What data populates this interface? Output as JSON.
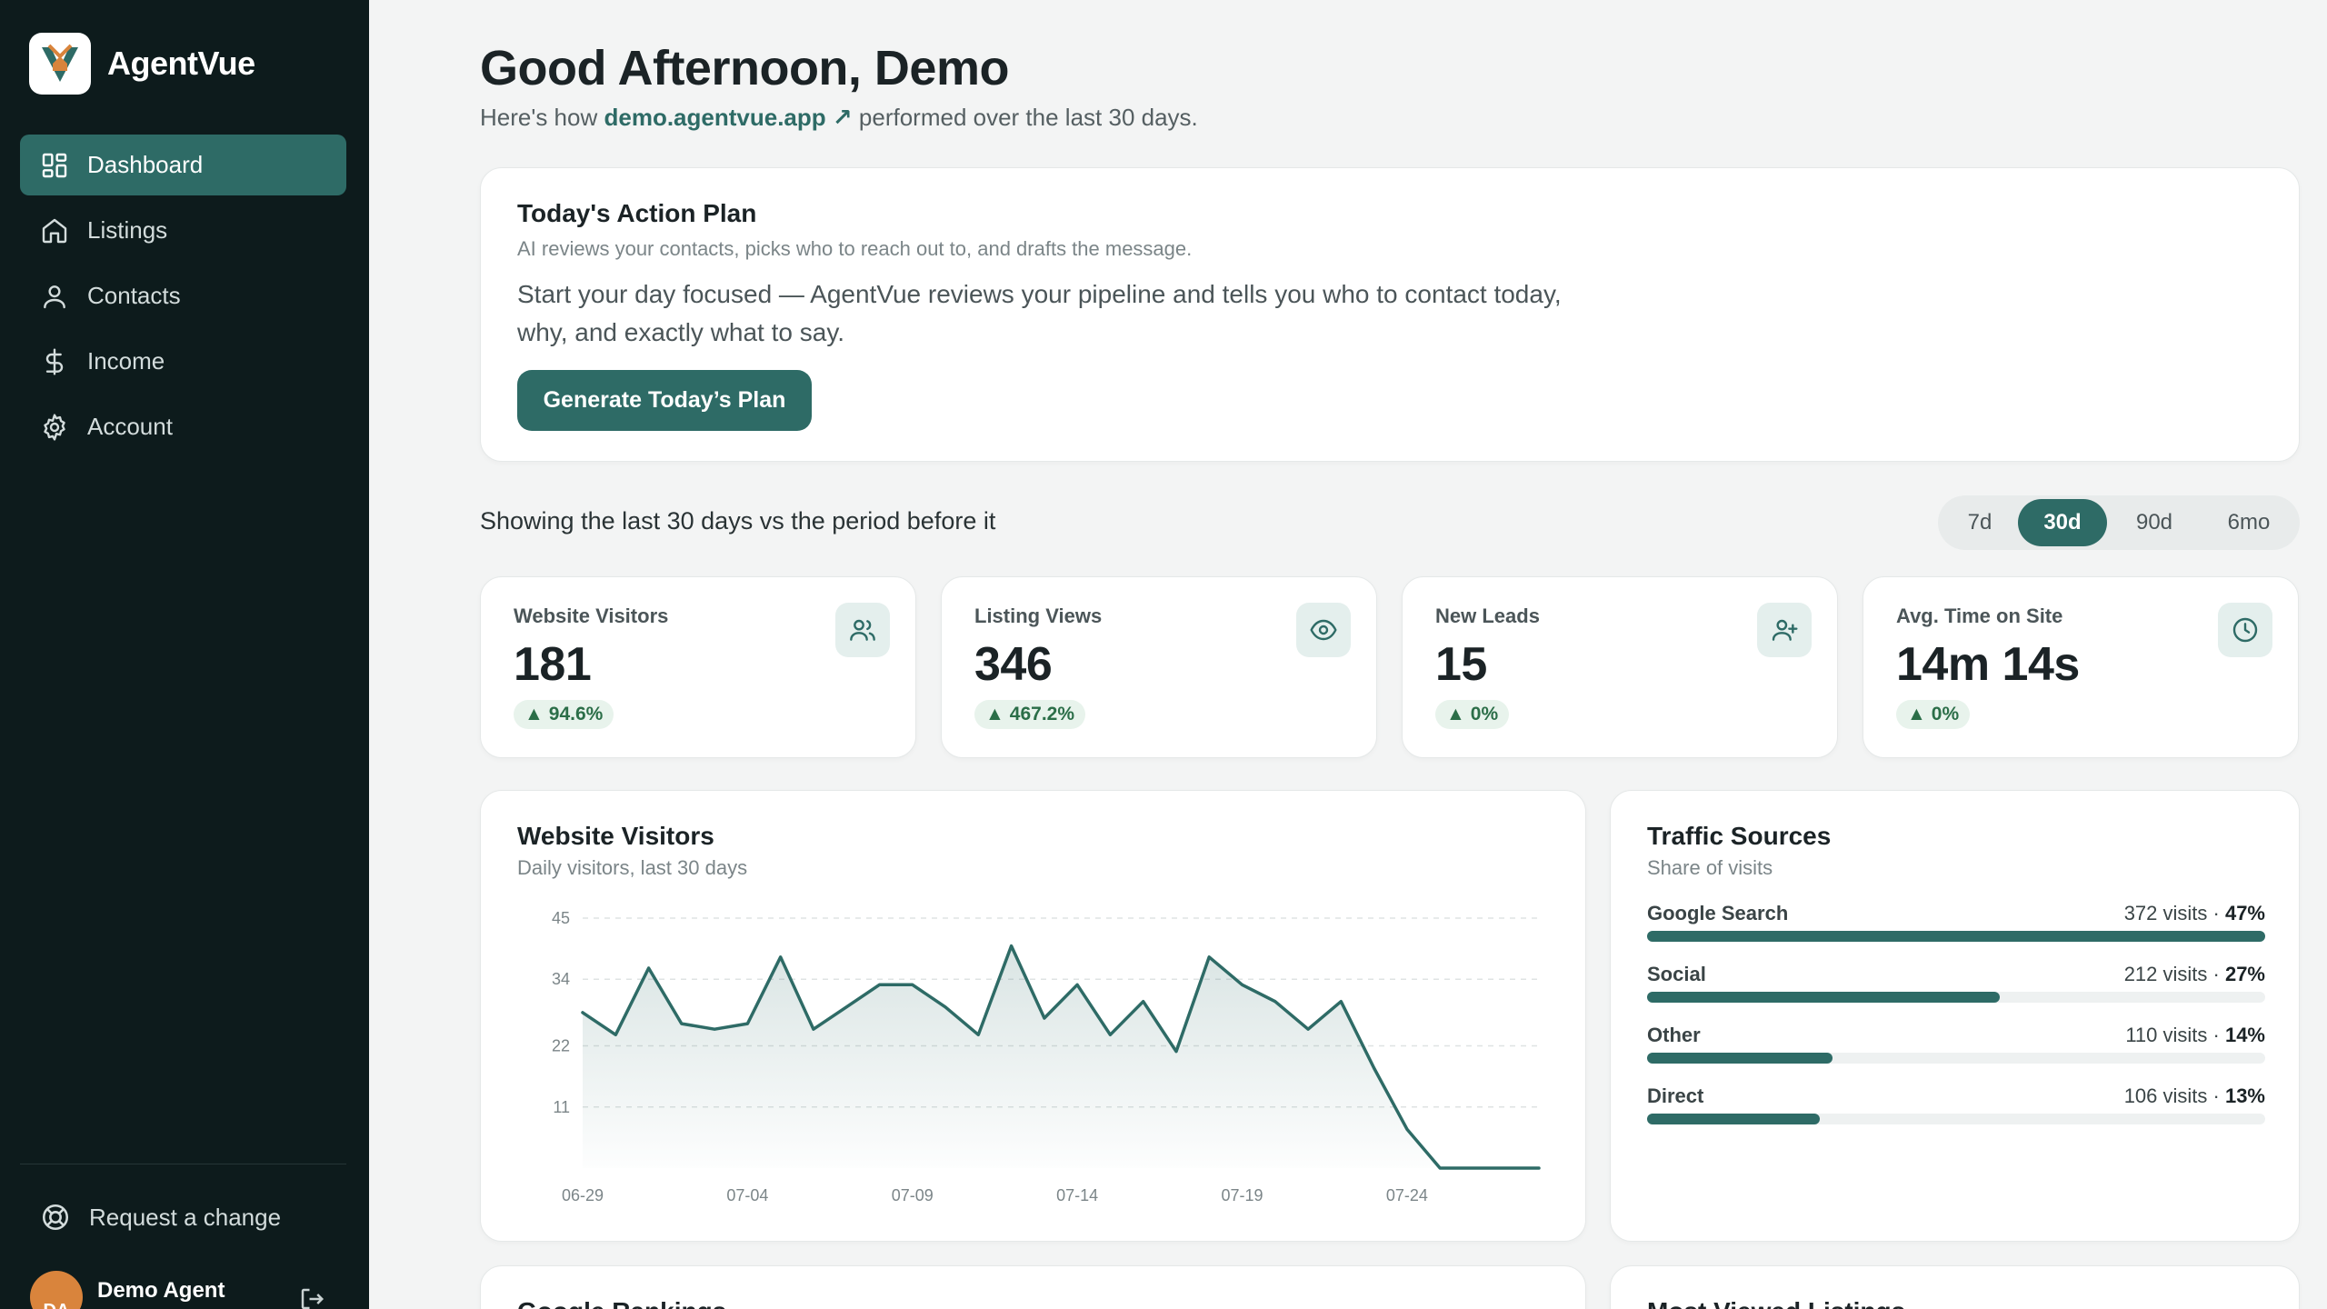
{
  "sidebar": {
    "brand": "AgentVue",
    "nav": [
      {
        "label": "Dashboard",
        "icon": "dashboard-icon",
        "active": true
      },
      {
        "label": "Listings",
        "icon": "home-icon"
      },
      {
        "label": "Contacts",
        "icon": "user-icon"
      },
      {
        "label": "Income",
        "icon": "dollar-icon"
      },
      {
        "label": "Account",
        "icon": "gear-icon"
      }
    ],
    "request_change": "Request a change",
    "user": {
      "initials": "DA",
      "name": "Demo Agent"
    }
  },
  "header": {
    "greeting": "Good Afternoon, Demo",
    "sub_prefix": "Here's how",
    "site_link": "demo.agentvue.app",
    "sub_suffix": "performed over the last 30 days."
  },
  "action_plan": {
    "title": "Today's Action Plan",
    "subtitle": "AI reviews your contacts, picks who to reach out to, and drafts the message.",
    "body": "Start your day focused — AgentVue reviews your pipeline and tells you who to contact today, why, and exactly what to say.",
    "button": "Generate Today’s Plan"
  },
  "period": {
    "label": "Showing the last 30 days vs the period before it",
    "tabs": [
      "7d",
      "30d",
      "90d",
      "6mo"
    ],
    "active": "30d"
  },
  "stats": [
    {
      "label": "Website Visitors",
      "value": "181",
      "change": "94.6%",
      "icon": "users-icon"
    },
    {
      "label": "Listing Views",
      "value": "346",
      "change": "467.2%",
      "icon": "eye-icon"
    },
    {
      "label": "New Leads",
      "value": "15",
      "change": "0%",
      "icon": "user-plus-icon"
    },
    {
      "label": "Avg. Time on Site",
      "value": "14m 14s",
      "change": "0%",
      "icon": "clock-icon"
    }
  ],
  "visitors_chart": {
    "title": "Website Visitors",
    "subtitle": "Daily visitors, last 30 days"
  },
  "chart_data": {
    "type": "area",
    "title": "Website Visitors",
    "subtitle": "Daily visitors, last 30 days",
    "xlabel": "",
    "ylabel": "",
    "y_ticks": [
      11,
      22,
      34,
      45
    ],
    "ylim": [
      0,
      45
    ],
    "x_tick_labels": [
      "06-29",
      "07-04",
      "07-09",
      "07-14",
      "07-19",
      "07-24"
    ],
    "x": [
      "06-29",
      "06-30",
      "07-01",
      "07-02",
      "07-03",
      "07-04",
      "07-05",
      "07-06",
      "07-07",
      "07-08",
      "07-09",
      "07-10",
      "07-11",
      "07-12",
      "07-13",
      "07-14",
      "07-15",
      "07-16",
      "07-17",
      "07-18",
      "07-19",
      "07-20",
      "07-21",
      "07-22",
      "07-23",
      "07-24",
      "07-25",
      "07-26",
      "07-27",
      "07-28"
    ],
    "values": [
      28,
      24,
      36,
      26,
      25,
      26,
      38,
      25,
      29,
      33,
      33,
      29,
      24,
      40,
      27,
      33,
      24,
      30,
      21,
      38,
      33,
      30,
      25,
      30,
      18,
      7,
      0,
      0,
      0,
      0
    ],
    "grid": "dashed-horizontal"
  },
  "traffic": {
    "title": "Traffic Sources",
    "subtitle": "Share of visits",
    "rows": [
      {
        "name": "Google Search",
        "visits": "372 visits · ",
        "pct": "47%",
        "share": 100
      },
      {
        "name": "Social",
        "visits": "212 visits · ",
        "pct": "27%",
        "share": 57
      },
      {
        "name": "Other",
        "visits": "110 visits · ",
        "pct": "14%",
        "share": 30
      },
      {
        "name": "Direct",
        "visits": "106 visits · ",
        "pct": "13%",
        "share": 28
      }
    ]
  },
  "bottom": {
    "left_title": "Google Rankings",
    "right_title": "Most Viewed Listings"
  },
  "colors": {
    "accent": "#2e6b66",
    "sidebar": "#0d1b1c",
    "positive": "#2b6e48"
  }
}
